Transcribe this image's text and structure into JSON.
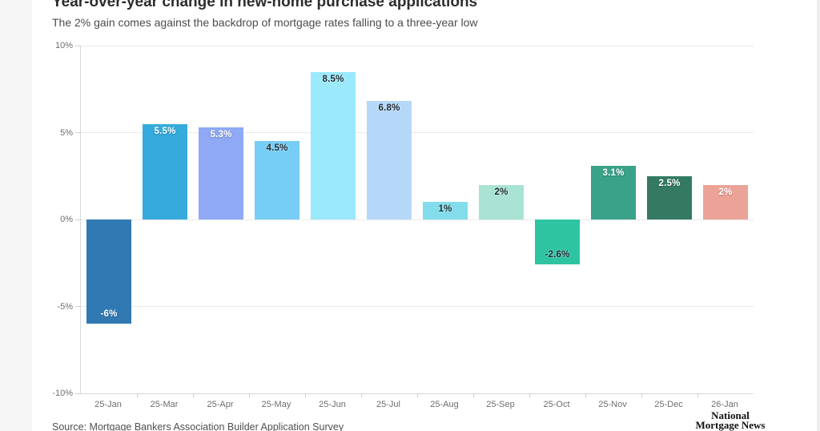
{
  "header": {
    "title": "Year-over-year change in new-home purchase applications",
    "subtitle": "The 2% gain comes against the backdrop of mortgage rates falling to a three-year low"
  },
  "footer": {
    "source": "Source: Mortgage Bankers Association Builder Application Survey",
    "logo": {
      "line1": "National",
      "line2": "Mortgage News"
    }
  },
  "chart_data": {
    "type": "bar",
    "title": "Year-over-year change in new-home purchase applications",
    "subtitle": "The 2% gain comes against the backdrop of mortgage rates falling to a three-year low",
    "categories": [
      "25-Jan",
      "25-Mar",
      "25-Apr",
      "25-May",
      "25-Jun",
      "25-Jul",
      "25-Aug",
      "25-Sep",
      "25-Oct",
      "25-Nov",
      "25-Dec",
      "26-Jan"
    ],
    "values": [
      -6,
      5.5,
      5.3,
      4.5,
      8.5,
      6.8,
      1,
      2,
      -2.6,
      3.1,
      2.5,
      2
    ],
    "value_labels": [
      "-6%",
      "5.5%",
      "5.3%",
      "4.5%",
      "8.5%",
      "6.8%",
      "1%",
      "2%",
      "-2.6%",
      "3.1%",
      "2.5%",
      "2%"
    ],
    "bar_colors": [
      "#3179b2",
      "#35abdd",
      "#8fa9f5",
      "#76cdf5",
      "#9ae9fc",
      "#b5d8f8",
      "#82dcec",
      "#a9e3d3",
      "#2ec4a2",
      "#39a289",
      "#347a63",
      "#eba397"
    ],
    "value_label_colors": [
      "#ffffff",
      "#ffffff",
      "#ffffff",
      "#1e2a30",
      "#1e2a30",
      "#1e2a30",
      "#1e2a30",
      "#1e2a30",
      "#1e2a30",
      "#ffffff",
      "#ffffff",
      "#ffffff"
    ],
    "ylabel": "",
    "xlabel": "",
    "ylim": [
      -10,
      10
    ],
    "yticks": [
      10,
      5,
      0,
      -5,
      -10
    ],
    "ytick_labels": [
      "10%",
      "5%",
      "0%",
      "-5%",
      "-10%"
    ],
    "grid": true,
    "legend": "none",
    "source": "Source: Mortgage Bankers Association Builder Application Survey"
  }
}
